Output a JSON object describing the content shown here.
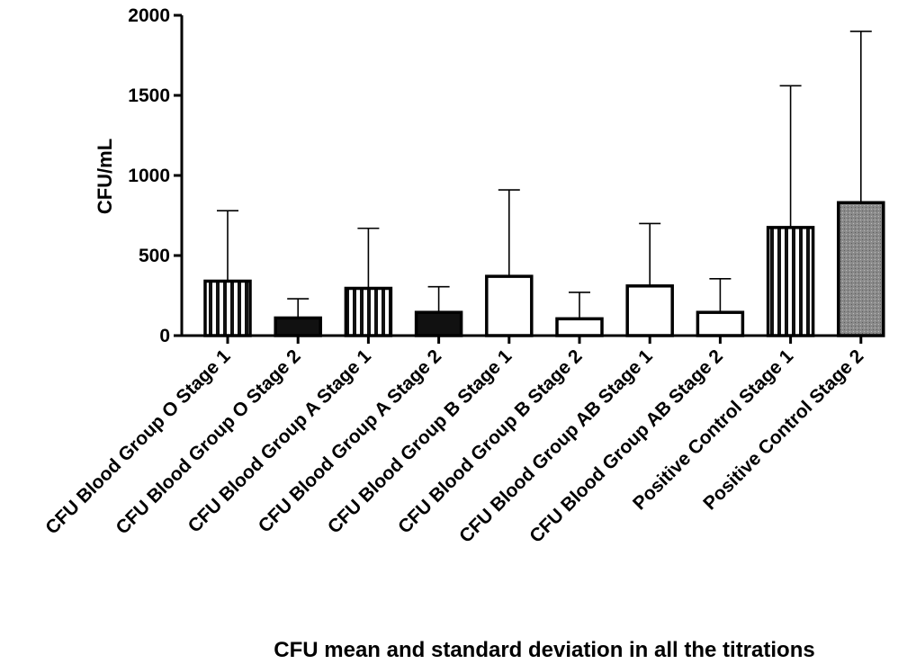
{
  "chart_data": {
    "type": "bar",
    "title": "",
    "xlabel": "CFU mean and standard deviation in all the titrations",
    "ylabel": "CFU/mL",
    "ylim": [
      0,
      2000
    ],
    "yticks": [
      0,
      500,
      1000,
      1500,
      2000
    ],
    "grid": false,
    "legend": "none",
    "categories": [
      "CFU Blood Group O Stage 1",
      "CFU Blood Group O Stage 2",
      "CFU Blood Group A Stage 1",
      "CFU Blood Group A Stage 2",
      "CFU Blood Group B Stage 1",
      "CFU Blood Group B Stage 2",
      "CFU Blood Group AB Stage 1",
      "CFU Blood Group AB Stage 2",
      "Positive Control Stage 1",
      "Positive Control Stage 2"
    ],
    "values": [
      340,
      110,
      295,
      145,
      370,
      105,
      310,
      145,
      675,
      830
    ],
    "error_upper": [
      780,
      230,
      670,
      305,
      910,
      270,
      700,
      355,
      1560,
      1900
    ],
    "fills": [
      "vertical-stripes",
      "solid-black",
      "vertical-stripes",
      "solid-black",
      "white",
      "white",
      "white",
      "white",
      "vertical-stripes",
      "gray-dotted"
    ],
    "colors": {
      "stroke": "#000000",
      "fill_black": "#111111",
      "fill_white": "#ffffff",
      "fill_gray": "#8a8a8a"
    }
  }
}
